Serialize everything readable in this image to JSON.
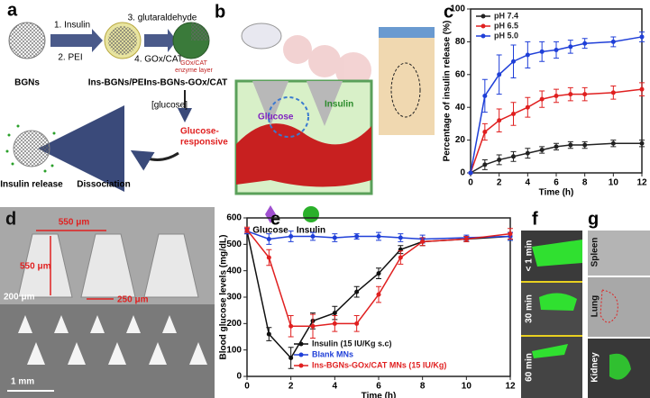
{
  "chart_data": [
    {
      "type": "line",
      "panel": "c",
      "ylabel": "Percentage of insulin release (%)",
      "xlabel": "Time (h)",
      "x": [
        0,
        1,
        2,
        3,
        4,
        5,
        6,
        7,
        8,
        10,
        12
      ],
      "xlim": [
        0,
        12
      ],
      "xticks": [
        0,
        2,
        4,
        6,
        8,
        10,
        12
      ],
      "ylim": [
        0,
        100
      ],
      "yticks": [
        0,
        20,
        40,
        60,
        80,
        100
      ],
      "legend": "upper left",
      "series": [
        {
          "name": "pH 7.4",
          "color": "#222222",
          "values": [
            0,
            5,
            8,
            10,
            12,
            14,
            16,
            17,
            17,
            18,
            18
          ],
          "errors": [
            0,
            3,
            3,
            3,
            3,
            2,
            2,
            2,
            2,
            2,
            2
          ]
        },
        {
          "name": "pH 6.5",
          "color": "#e02020",
          "values": [
            0,
            25,
            32,
            36,
            40,
            45,
            47,
            48,
            48,
            49,
            51
          ],
          "errors": [
            0,
            5,
            7,
            7,
            6,
            5,
            4,
            4,
            4,
            4,
            4
          ]
        },
        {
          "name": "pH 5.0",
          "color": "#1f3fd8",
          "values": [
            0,
            47,
            60,
            68,
            72,
            74,
            75,
            77,
            79,
            80,
            83
          ],
          "errors": [
            0,
            10,
            12,
            10,
            8,
            6,
            5,
            4,
            3,
            3,
            3
          ]
        }
      ]
    },
    {
      "type": "line",
      "panel": "e",
      "ylabel": "Blood glucose levels (mg/dL)",
      "xlabel": "Time (h)",
      "x": [
        0,
        1,
        2,
        3,
        4,
        5,
        6,
        7,
        8,
        10,
        12
      ],
      "xlim": [
        0,
        12
      ],
      "xticks": [
        0,
        2,
        4,
        6,
        8,
        10,
        12
      ],
      "ylim": [
        0,
        600
      ],
      "yticks": [
        0,
        100,
        200,
        300,
        400,
        500,
        600
      ],
      "legend": "lower center",
      "series": [
        {
          "name": "Insulin (15 IU/Kg s.c)",
          "color": "#111111",
          "values": [
            550,
            160,
            70,
            210,
            240,
            320,
            390,
            480,
            510,
            520,
            530
          ],
          "errors": [
            10,
            25,
            40,
            30,
            25,
            20,
            20,
            15,
            15,
            10,
            15
          ]
        },
        {
          "name": "Blank MNs",
          "color": "#1f3fd8",
          "values": [
            550,
            520,
            530,
            530,
            525,
            530,
            530,
            525,
            520,
            525,
            530
          ],
          "errors": [
            10,
            20,
            20,
            15,
            15,
            10,
            15,
            15,
            15,
            10,
            15
          ]
        },
        {
          "name": "Ins-BGNs-GOx/CAT MNs (15 IU/Kg)",
          "color": "#e02020",
          "values": [
            555,
            450,
            190,
            190,
            200,
            200,
            310,
            450,
            510,
            520,
            540
          ],
          "errors": [
            10,
            30,
            40,
            45,
            30,
            30,
            30,
            25,
            15,
            10,
            20
          ]
        }
      ]
    }
  ],
  "panels": {
    "a": {
      "label": "a",
      "step1": "1. Insulin",
      "step2": "2. PEI",
      "step3": "3. glutaraldehyde",
      "step4": "4. GOx/CAT",
      "bgns": "BGNs",
      "ins_pei": "Ins-BGNs/PEI",
      "ins_gox": "Ins-BGNs-GOx/CAT",
      "enzyme1": "GOx/CAT",
      "enzyme2": "enzyme layer",
      "glucose": "[glucose]",
      "responsive1": "Glucose-",
      "responsive2": "responsive",
      "release": "Insulin release",
      "dissociation": "Dissociation"
    },
    "b": {
      "label": "b",
      "glucose_inner": "Glucose",
      "insulin_inner": "Insulin",
      "glucose": "Glucose",
      "insulin": "Insulin"
    },
    "d": {
      "label": "d",
      "width": "550 μm",
      "height": "550 μm",
      "scale": "200 μm",
      "pitch": "250 μm",
      "scale2": "1 mm"
    },
    "f": {
      "label": "f",
      "t1": "< 1 min",
      "t2": "30 min",
      "t3": "60 min"
    },
    "g": {
      "label": "g",
      "o1": "Spleen",
      "o2": "Lung",
      "o3": "Kidney"
    }
  }
}
